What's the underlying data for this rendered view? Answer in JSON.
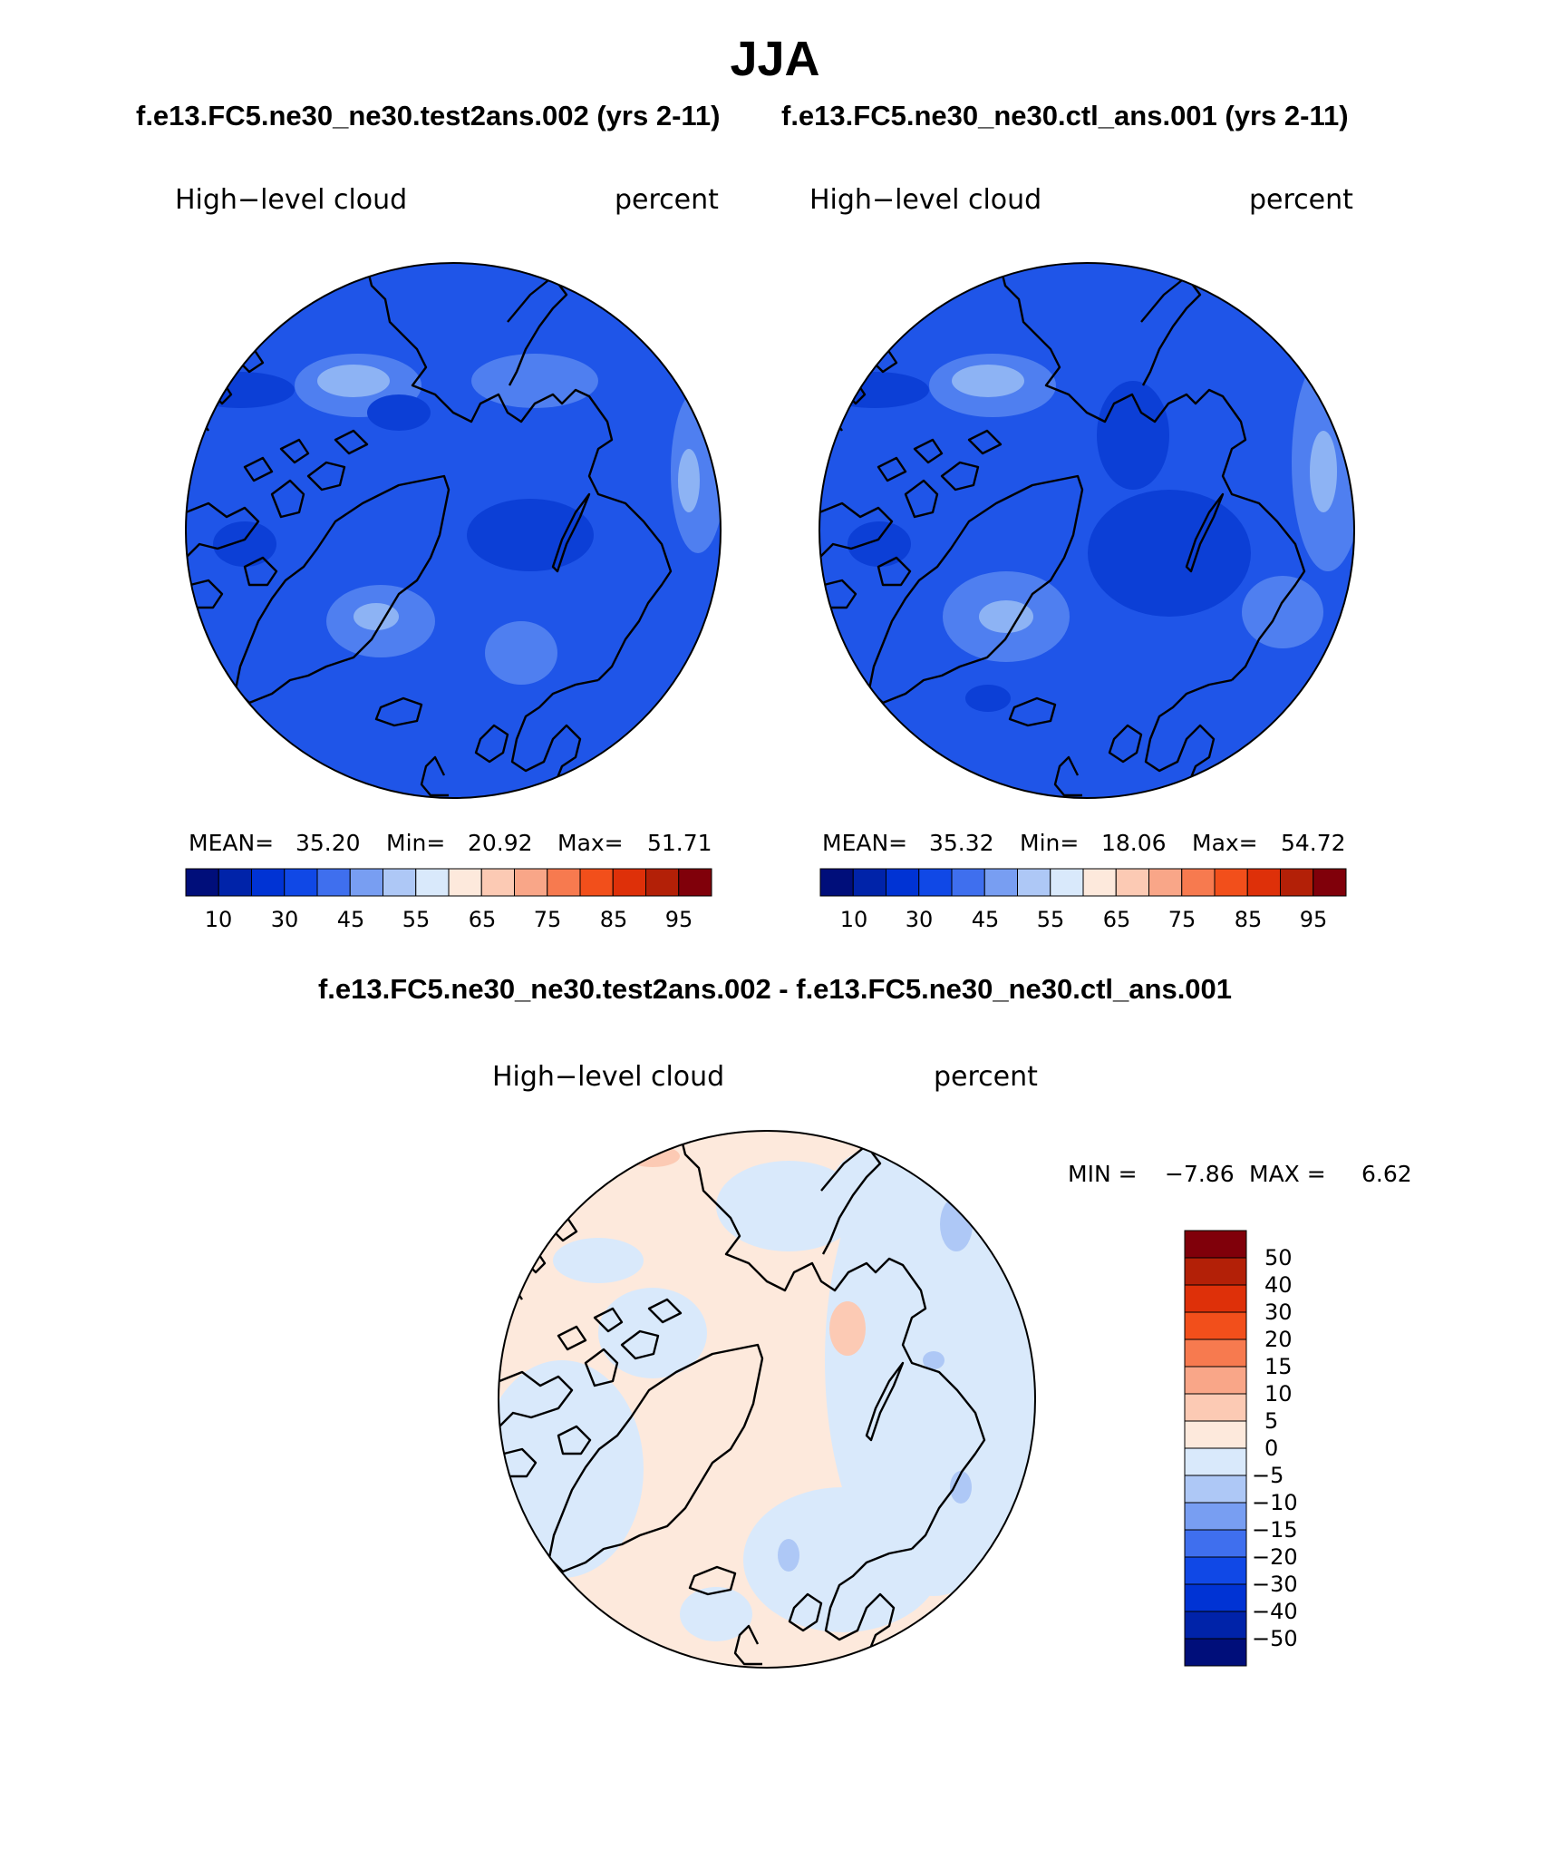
{
  "header": {
    "season": "JJA",
    "case1": "f.e13.FC5.ne30_ne30.test2ans.002 (yrs 2-11)",
    "case2": "f.e13.FC5.ne30_ne30.ctl_ans.001 (yrs 2-11)",
    "diff_title": "f.e13.FC5.ne30_ne30.test2ans.002 - f.e13.FC5.ne30_ne30.ctl_ans.001"
  },
  "panels": [
    {
      "variable": "High−level cloud",
      "units": "percent",
      "mean_label": "MEAN=",
      "mean": "35.20",
      "min_label": "Min=",
      "min": "20.92",
      "max_label": "Max=",
      "max": "51.71",
      "colorbar_ticks": [
        "10",
        "30",
        "45",
        "55",
        "65",
        "75",
        "85",
        "95"
      ]
    },
    {
      "variable": "High−level cloud",
      "units": "percent",
      "mean_label": "MEAN=",
      "mean": "35.32",
      "min_label": "Min=",
      "min": "18.06",
      "max_label": "Max=",
      "max": "54.72",
      "colorbar_ticks": [
        "10",
        "30",
        "45",
        "55",
        "65",
        "75",
        "85",
        "95"
      ]
    }
  ],
  "diff_panel": {
    "variable": "High−level cloud",
    "units": "percent",
    "min_label": "MIN =",
    "min": "−7.86",
    "max_label": "MAX =",
    "max": "6.62",
    "colorbar_ticks": [
      "50",
      "40",
      "30",
      "20",
      "15",
      "10",
      "5",
      "0",
      "−5",
      "−10",
      "−15",
      "−20",
      "−30",
      "−40",
      "−50"
    ]
  },
  "colors": {
    "abs_colorbar": [
      "#000e7a",
      "#0023a9",
      "#0033d4",
      "#1048e6",
      "#3f6fee",
      "#789ef2",
      "#aec8f6",
      "#d9e9fb",
      "#fde9dc",
      "#fccab4",
      "#f9a688",
      "#f77a4f",
      "#f24f1b",
      "#de3009",
      "#b32007",
      "#80000a"
    ],
    "diff_colorbar": [
      "#80000a",
      "#b32007",
      "#de3009",
      "#f24f1b",
      "#f77a4f",
      "#f9a688",
      "#fccab4",
      "#fde9dc",
      "#d9e9fb",
      "#aec8f6",
      "#789ef2",
      "#3f6fee",
      "#1048e6",
      "#0033d4",
      "#0023a9",
      "#000e7a"
    ],
    "map_base_abs": "#1f55e8",
    "map_dark_abs": "#0c3fd6",
    "map_light_abs": "#4f7ff0",
    "map_lighter_abs": "#8db3f4",
    "map_diff_pos": "#fde9dc",
    "map_diff_neg": "#d9e9fb",
    "map_diff_neg2": "#aec8f6",
    "map_diff_pos2": "#fccab4"
  }
}
